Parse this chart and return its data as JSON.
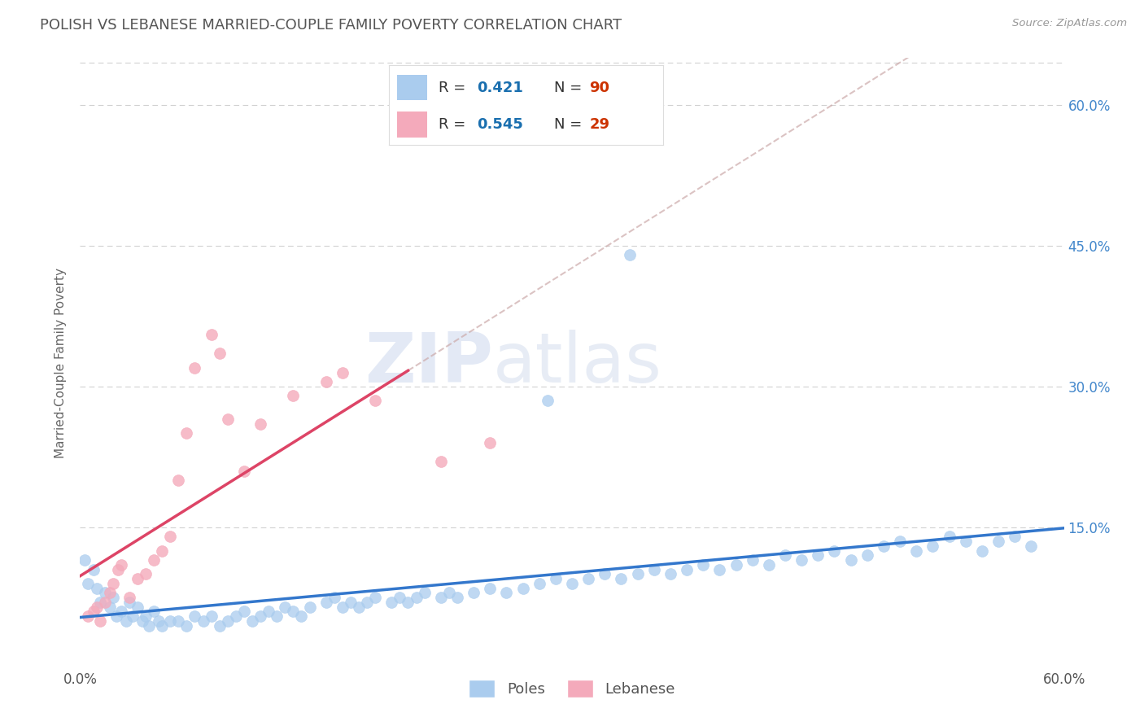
{
  "title": "POLISH VS LEBANESE MARRIED-COUPLE FAMILY POVERTY CORRELATION CHART",
  "source": "Source: ZipAtlas.com",
  "ylabel_label": "Married-Couple Family Poverty",
  "xlim": [
    0.0,
    60.0
  ],
  "ylim": [
    0.0,
    65.0
  ],
  "poles_R": 0.421,
  "poles_N": 90,
  "lebanese_R": 0.545,
  "lebanese_N": 29,
  "poles_color": "#aaccee",
  "lebanese_color": "#f4aabb",
  "poles_line_color": "#3377cc",
  "lebanese_line_color": "#dd4466",
  "poles_scatter": [
    [
      0.3,
      11.5
    ],
    [
      0.5,
      9.0
    ],
    [
      0.8,
      10.5
    ],
    [
      1.0,
      8.5
    ],
    [
      1.2,
      7.0
    ],
    [
      1.5,
      8.0
    ],
    [
      1.8,
      6.5
    ],
    [
      2.0,
      7.5
    ],
    [
      2.2,
      5.5
    ],
    [
      2.5,
      6.0
    ],
    [
      2.8,
      5.0
    ],
    [
      3.0,
      7.0
    ],
    [
      3.2,
      5.5
    ],
    [
      3.5,
      6.5
    ],
    [
      3.8,
      5.0
    ],
    [
      4.0,
      5.5
    ],
    [
      4.2,
      4.5
    ],
    [
      4.5,
      6.0
    ],
    [
      4.8,
      5.0
    ],
    [
      5.0,
      4.5
    ],
    [
      5.5,
      5.0
    ],
    [
      6.0,
      5.0
    ],
    [
      6.5,
      4.5
    ],
    [
      7.0,
      5.5
    ],
    [
      7.5,
      5.0
    ],
    [
      8.0,
      5.5
    ],
    [
      8.5,
      4.5
    ],
    [
      9.0,
      5.0
    ],
    [
      9.5,
      5.5
    ],
    [
      10.0,
      6.0
    ],
    [
      10.5,
      5.0
    ],
    [
      11.0,
      5.5
    ],
    [
      11.5,
      6.0
    ],
    [
      12.0,
      5.5
    ],
    [
      12.5,
      6.5
    ],
    [
      13.0,
      6.0
    ],
    [
      13.5,
      5.5
    ],
    [
      14.0,
      6.5
    ],
    [
      15.0,
      7.0
    ],
    [
      15.5,
      7.5
    ],
    [
      16.0,
      6.5
    ],
    [
      16.5,
      7.0
    ],
    [
      17.0,
      6.5
    ],
    [
      17.5,
      7.0
    ],
    [
      18.0,
      7.5
    ],
    [
      19.0,
      7.0
    ],
    [
      19.5,
      7.5
    ],
    [
      20.0,
      7.0
    ],
    [
      20.5,
      7.5
    ],
    [
      21.0,
      8.0
    ],
    [
      22.0,
      7.5
    ],
    [
      22.5,
      8.0
    ],
    [
      23.0,
      7.5
    ],
    [
      24.0,
      8.0
    ],
    [
      25.0,
      8.5
    ],
    [
      26.0,
      8.0
    ],
    [
      27.0,
      8.5
    ],
    [
      28.0,
      9.0
    ],
    [
      29.0,
      9.5
    ],
    [
      30.0,
      9.0
    ],
    [
      31.0,
      9.5
    ],
    [
      32.0,
      10.0
    ],
    [
      33.0,
      9.5
    ],
    [
      34.0,
      10.0
    ],
    [
      35.0,
      10.5
    ],
    [
      36.0,
      10.0
    ],
    [
      37.0,
      10.5
    ],
    [
      38.0,
      11.0
    ],
    [
      39.0,
      10.5
    ],
    [
      40.0,
      11.0
    ],
    [
      41.0,
      11.5
    ],
    [
      42.0,
      11.0
    ],
    [
      43.0,
      12.0
    ],
    [
      44.0,
      11.5
    ],
    [
      45.0,
      12.0
    ],
    [
      46.0,
      12.5
    ],
    [
      47.0,
      11.5
    ],
    [
      48.0,
      12.0
    ],
    [
      49.0,
      13.0
    ],
    [
      50.0,
      13.5
    ],
    [
      51.0,
      12.5
    ],
    [
      52.0,
      13.0
    ],
    [
      53.0,
      14.0
    ],
    [
      54.0,
      13.5
    ],
    [
      55.0,
      12.5
    ],
    [
      56.0,
      13.5
    ],
    [
      57.0,
      14.0
    ],
    [
      58.0,
      13.0
    ],
    [
      28.5,
      28.5
    ],
    [
      33.5,
      44.0
    ]
  ],
  "lebanese_scatter": [
    [
      0.5,
      5.5
    ],
    [
      0.8,
      6.0
    ],
    [
      1.0,
      6.5
    ],
    [
      1.2,
      5.0
    ],
    [
      1.5,
      7.0
    ],
    [
      1.8,
      8.0
    ],
    [
      2.0,
      9.0
    ],
    [
      2.3,
      10.5
    ],
    [
      2.5,
      11.0
    ],
    [
      3.0,
      7.5
    ],
    [
      3.5,
      9.5
    ],
    [
      4.0,
      10.0
    ],
    [
      4.5,
      11.5
    ],
    [
      5.0,
      12.5
    ],
    [
      5.5,
      14.0
    ],
    [
      6.0,
      20.0
    ],
    [
      6.5,
      25.0
    ],
    [
      7.0,
      32.0
    ],
    [
      8.0,
      35.5
    ],
    [
      8.5,
      33.5
    ],
    [
      9.0,
      26.5
    ],
    [
      10.0,
      21.0
    ],
    [
      11.0,
      26.0
    ],
    [
      13.0,
      29.0
    ],
    [
      15.0,
      30.5
    ],
    [
      16.0,
      31.5
    ],
    [
      18.0,
      28.5
    ],
    [
      22.0,
      22.0
    ],
    [
      25.0,
      24.0
    ]
  ],
  "background_color": "#ffffff",
  "grid_color": "#cccccc",
  "watermark_zip": "ZIP",
  "watermark_atlas": "atlas",
  "legend_R_color": "#1a6faf",
  "legend_N_color": "#cc3300",
  "title_color": "#555555",
  "axis_label_color": "#666666",
  "tick_label_color": "#555555",
  "right_tick_color": "#4488cc"
}
